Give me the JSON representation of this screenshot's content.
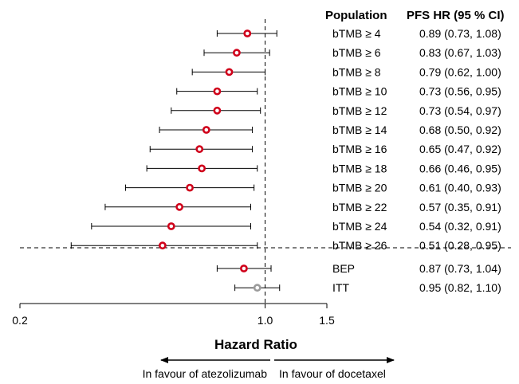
{
  "chart_data": {
    "type": "forest",
    "xlabel": "Hazard Ratio",
    "x_scale": "log",
    "xlim": [
      0.2,
      1.5
    ],
    "xticks": [
      {
        "value": 0.2,
        "label": "0.2"
      },
      {
        "value": 1.0,
        "label": "1.0"
      },
      {
        "value": 1.5,
        "label": "1.5"
      }
    ],
    "reference_line": 1.0,
    "column_headers": {
      "population": "Population",
      "estimate": "PFS HR (95 % CI)"
    },
    "favour_left": "In favour of atezolizumab",
    "favour_right": "In favour of docetaxel",
    "groups": [
      {
        "rows": [
          {
            "population": "bTMB ≥ 4",
            "hr": 0.89,
            "lo": 0.73,
            "hi": 1.08,
            "text": "0.89 (0.73, 1.08)",
            "color": "#d0021b"
          },
          {
            "population": "bTMB ≥ 6",
            "hr": 0.83,
            "lo": 0.67,
            "hi": 1.03,
            "text": "0.83 (0.67, 1.03)",
            "color": "#d0021b"
          },
          {
            "population": "bTMB ≥ 8",
            "hr": 0.79,
            "lo": 0.62,
            "hi": 1.0,
            "text": "0.79 (0.62, 1.00)",
            "color": "#d0021b"
          },
          {
            "population": "bTMB ≥ 10",
            "hr": 0.73,
            "lo": 0.56,
            "hi": 0.95,
            "text": "0.73 (0.56, 0.95)",
            "color": "#d0021b"
          },
          {
            "population": "bTMB ≥ 12",
            "hr": 0.73,
            "lo": 0.54,
            "hi": 0.97,
            "text": "0.73 (0.54, 0.97)",
            "color": "#d0021b"
          },
          {
            "population": "bTMB ≥ 14",
            "hr": 0.68,
            "lo": 0.5,
            "hi": 0.92,
            "text": "0.68 (0.50, 0.92)",
            "color": "#d0021b"
          },
          {
            "population": "bTMB ≥ 16",
            "hr": 0.65,
            "lo": 0.47,
            "hi": 0.92,
            "text": "0.65 (0.47, 0.92)",
            "color": "#d0021b"
          },
          {
            "population": "bTMB ≥ 18",
            "hr": 0.66,
            "lo": 0.46,
            "hi": 0.95,
            "text": "0.66 (0.46, 0.95)",
            "color": "#d0021b"
          },
          {
            "population": "bTMB ≥ 20",
            "hr": 0.61,
            "lo": 0.4,
            "hi": 0.93,
            "text": "0.61 (0.40, 0.93)",
            "color": "#d0021b"
          },
          {
            "population": "bTMB ≥ 22",
            "hr": 0.57,
            "lo": 0.35,
            "hi": 0.91,
            "text": "0.57 (0.35, 0.91)",
            "color": "#d0021b"
          },
          {
            "population": "bTMB ≥ 24",
            "hr": 0.54,
            "lo": 0.32,
            "hi": 0.91,
            "text": "0.54 (0.32, 0.91)",
            "color": "#d0021b"
          },
          {
            "population": "bTMB ≥ 26",
            "hr": 0.51,
            "lo": 0.28,
            "hi": 0.95,
            "text": "0.51 (0.28, 0.95)",
            "color": "#d0021b"
          }
        ]
      },
      {
        "rows": [
          {
            "population": "BEP",
            "hr": 0.87,
            "lo": 0.73,
            "hi": 1.04,
            "text": "0.87 (0.73, 1.04)",
            "color": "#d0021b"
          },
          {
            "population": "ITT",
            "hr": 0.95,
            "lo": 0.82,
            "hi": 1.1,
            "text": "0.95 (0.82, 1.10)",
            "color": "#9b9b9b"
          }
        ]
      }
    ]
  }
}
